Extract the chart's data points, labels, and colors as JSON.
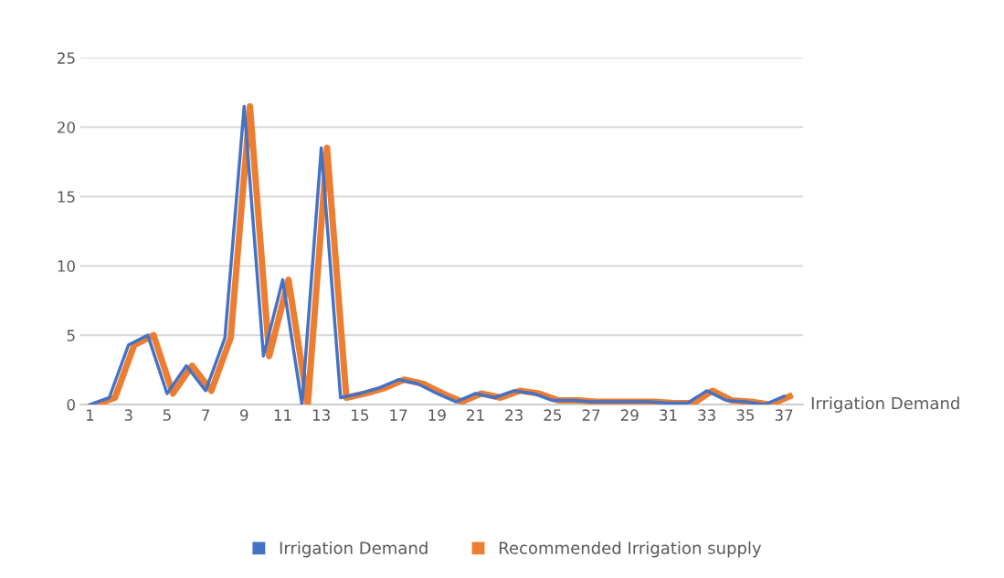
{
  "chart_data": {
    "type": "line",
    "categories": [
      "1",
      null,
      "3",
      null,
      "5",
      null,
      "7",
      null,
      "9",
      null,
      "11",
      null,
      "13",
      null,
      "15",
      null,
      "17",
      null,
      "19",
      null,
      "21",
      null,
      "23",
      null,
      "25",
      null,
      "27",
      null,
      "29",
      null,
      "31",
      null,
      "33",
      null,
      "35",
      null,
      "37"
    ],
    "series": [
      {
        "name": "Irrigation Demand",
        "color": "#4472c4",
        "values": [
          0,
          0.5,
          4.3,
          5,
          0.8,
          2.8,
          1,
          4.8,
          21.5,
          3.5,
          9,
          0,
          18.5,
          0.5,
          0.8,
          1.2,
          1.8,
          1.5,
          0.8,
          0.2,
          0.8,
          0.5,
          1,
          0.8,
          0.3,
          0.3,
          0.2,
          0.2,
          0.2,
          0.2,
          0.1,
          0.1,
          1,
          0.3,
          0.2,
          0,
          0.6
        ]
      },
      {
        "name": "Recommended Irrigation supply",
        "color": "#ed7d31",
        "values": [
          0,
          0.5,
          4.3,
          5,
          0.8,
          2.8,
          1,
          4.8,
          21.5,
          3.5,
          9,
          0,
          18.5,
          0.5,
          0.8,
          1.2,
          1.8,
          1.5,
          0.8,
          0.2,
          0.8,
          0.5,
          1,
          0.8,
          0.3,
          0.3,
          0.2,
          0.2,
          0.2,
          0.2,
          0.1,
          0.1,
          1,
          0.3,
          0.2,
          0,
          0.6
        ]
      }
    ],
    "ylim": [
      0,
      25
    ],
    "yticks": [
      0,
      5,
      10,
      15,
      20,
      25
    ],
    "grid": "y",
    "legend": "bottom",
    "line_style": "solid",
    "marker": "none",
    "annotations": [
      "Irrigation Demand"
    ]
  }
}
